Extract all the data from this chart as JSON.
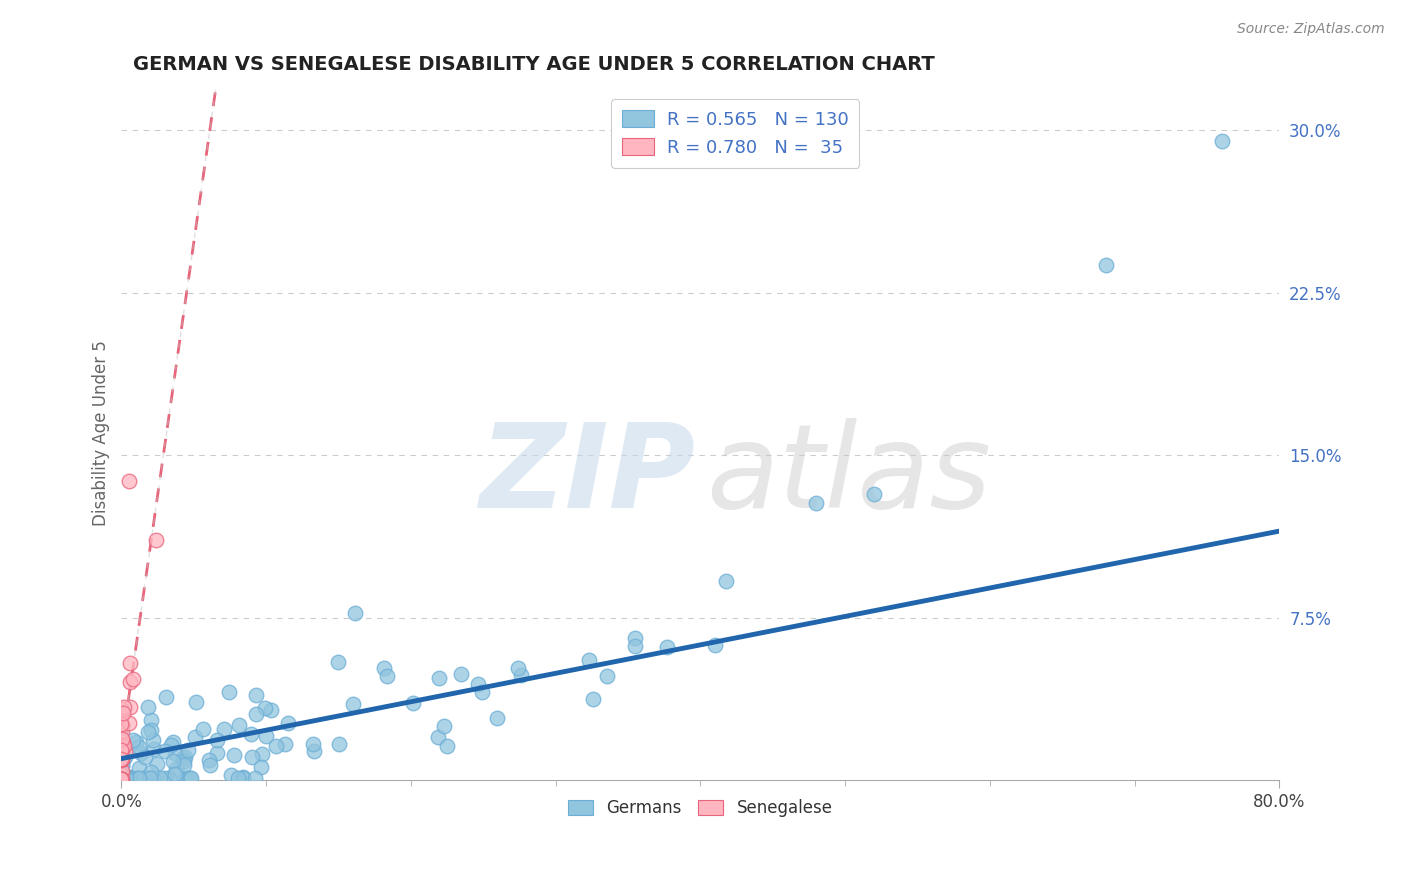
{
  "title": "GERMAN VS SENEGALESE DISABILITY AGE UNDER 5 CORRELATION CHART",
  "source": "Source: ZipAtlas.com",
  "ylabel": "Disability Age Under 5",
  "xlim": [
    0.0,
    0.8
  ],
  "ylim": [
    0.0,
    0.32
  ],
  "yticks": [
    0.0,
    0.075,
    0.15,
    0.225,
    0.3
  ],
  "ytick_labels": [
    "",
    "7.5%",
    "15.0%",
    "22.5%",
    "30.0%"
  ],
  "german_color": "#92c5de",
  "german_edge_color": "#6baed6",
  "senegalese_color": "#ffb6c1",
  "senegalese_edge_color": "#e8647a",
  "german_line_color": "#2166ac",
  "senegalese_line_color": "#e8647a",
  "senegalese_dash_color": "#f4a7b0",
  "legend_text_color": "#4472c4",
  "R_german": 0.565,
  "N_german": 130,
  "R_senegalese": 0.78,
  "N_senegalese": 35,
  "background_color": "#ffffff",
  "grid_color": "#cccccc",
  "watermark_zip_color": "#c5d8ec",
  "watermark_atlas_color": "#c8c8c8"
}
